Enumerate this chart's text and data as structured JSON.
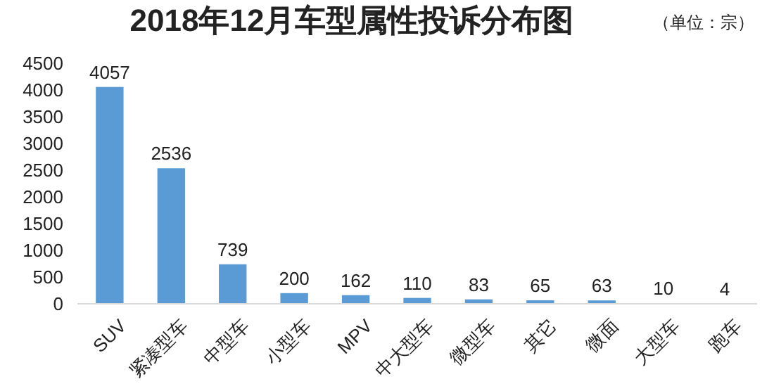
{
  "chart_data": {
    "type": "bar",
    "title": "2018年12月车型属性投诉分布图",
    "annotations": [
      "（单位：宗）"
    ],
    "categories": [
      "SUV",
      "紧凑型车",
      "中型车",
      "小型车",
      "MPV",
      "中大型车",
      "微型车",
      "其它",
      "微面",
      "大型车",
      "跑车"
    ],
    "values": [
      4057,
      2536,
      739,
      200,
      162,
      110,
      83,
      65,
      63,
      10,
      4
    ],
    "color": "#5b9bd5",
    "ylim": [
      0,
      4500
    ],
    "yticks": [
      0,
      500,
      1000,
      1500,
      2000,
      2500,
      3000,
      3500,
      4000,
      4500
    ],
    "grid": false,
    "data_labels": true
  }
}
